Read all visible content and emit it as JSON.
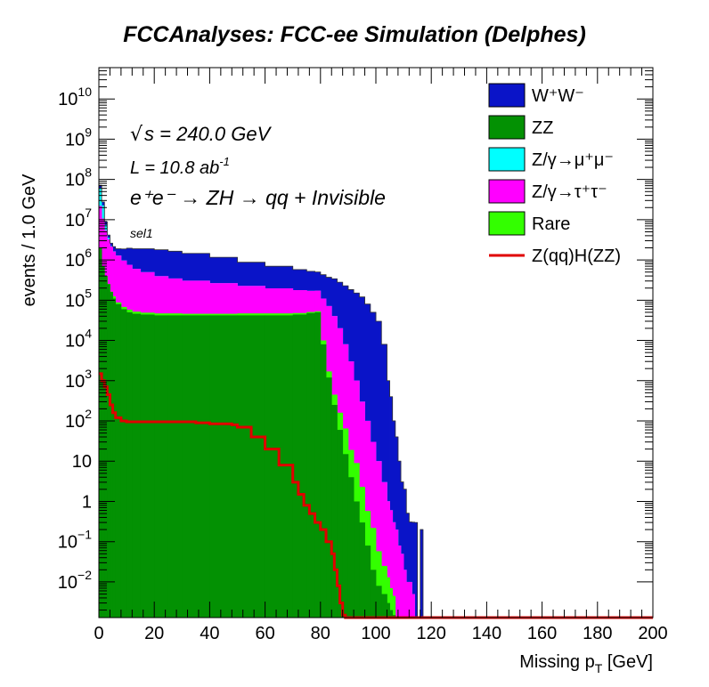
{
  "chart_data": {
    "type": "area",
    "title": "FCCAnalyses: FCC-ee Simulation (Delphes)",
    "xlabel": "Missing p_T [GeV]",
    "xlabel_main": "Missing p",
    "xlabel_sub": "T",
    "xlabel_unit": " [GeV]",
    "ylabel": "events / 1.0 GeV",
    "xlim": [
      0,
      200
    ],
    "ylog": true,
    "ylim": [
      0.0013,
      60000000000
    ],
    "x_ticks": [
      "0",
      "20",
      "40",
      "60",
      "80",
      "100",
      "120",
      "140",
      "160",
      "180",
      "200"
    ],
    "y_ticks": [
      {
        "base": "10",
        "exp": "10"
      },
      {
        "base": "10",
        "exp": "9"
      },
      {
        "base": "10",
        "exp": "8"
      },
      {
        "base": "10",
        "exp": "7"
      },
      {
        "base": "10",
        "exp": "6"
      },
      {
        "base": "10",
        "exp": "5"
      },
      {
        "base": "10",
        "exp": "4"
      },
      {
        "base": "10",
        "exp": "3"
      },
      {
        "base": "10",
        "exp": "2"
      },
      {
        "base": "10",
        "exp": ""
      },
      {
        "base": "1",
        "exp": ""
      },
      {
        "base": "10",
        "exp": "−1"
      },
      {
        "base": "10",
        "exp": "−2"
      }
    ],
    "annotations": {
      "sqrt_s": "s = 240.0 GeV",
      "lumi": "L = 10.8 ab",
      "lumi_exp": "-1",
      "process": "e⁺e⁻ → ZH → qq + Invisible",
      "selection": "sel1"
    },
    "legend": [
      {
        "label": "W⁺W⁻",
        "color": "#0a14c8",
        "kind": "fill"
      },
      {
        "label": "ZZ",
        "color": "#039103",
        "kind": "fill"
      },
      {
        "label": "Z/γ→μ⁺μ⁻",
        "color": "#00ffff",
        "kind": "fill"
      },
      {
        "label": "Z/γ→τ⁺τ⁻",
        "color": "#ff00ff",
        "kind": "fill"
      },
      {
        "label": "Rare",
        "color": "#33ff00",
        "kind": "fill"
      },
      {
        "label": "Z(qq)H(ZZ)",
        "color": "#e00000",
        "kind": "line"
      }
    ],
    "stack_x": [
      0,
      1,
      2,
      3,
      4,
      5,
      6,
      8,
      10,
      12,
      15,
      20,
      25,
      30,
      40,
      50,
      60,
      70,
      75,
      78,
      80,
      82,
      84,
      86,
      88,
      90,
      92,
      94,
      96,
      98,
      100,
      102,
      104,
      105,
      106,
      107,
      108,
      109,
      110,
      111,
      112,
      113,
      114,
      115,
      116,
      117,
      118,
      119,
      120
    ],
    "series": [
      {
        "name": "ZZ",
        "color": "#039103",
        "values": [
          2000000,
          700000,
          400000,
          250000,
          160000,
          110000,
          80000,
          60000,
          50000,
          46000,
          44000,
          42000,
          42000,
          42000,
          42000,
          42000,
          42000,
          44000,
          48000,
          50000,
          8000,
          1200,
          250,
          60,
          15,
          4,
          1,
          0.3,
          0.08,
          0.02,
          0.008,
          0.005,
          0.003,
          0.002,
          0.0015,
          null,
          null,
          null,
          null,
          null,
          null,
          null,
          null,
          null,
          null,
          null,
          null,
          null,
          null
        ]
      },
      {
        "name": "Rare",
        "color": "#33ff00",
        "values": [
          5000,
          5000,
          5000,
          3000,
          3000,
          15000,
          8000,
          8000,
          8000,
          6000,
          5000,
          5000,
          5000,
          4000,
          4000,
          5000,
          5000,
          4000,
          3000,
          3000,
          2000,
          500,
          200,
          100,
          50,
          15,
          8,
          2,
          0.5,
          0.2,
          0.05,
          0.02,
          0.01,
          0.005,
          0.003,
          null,
          null,
          null,
          null,
          null,
          null,
          null,
          null,
          null,
          null,
          null,
          null,
          null,
          null
        ]
      },
      {
        "name": "Z/γ→τ⁺τ⁻",
        "color": "#ff00ff",
        "values": [
          20000000,
          10000000,
          5000000,
          3000000,
          2000000,
          1500000,
          1200000,
          900000,
          700000,
          550000,
          450000,
          350000,
          300000,
          260000,
          220000,
          180000,
          150000,
          130000,
          120000,
          120000,
          100000,
          70000,
          40000,
          20000,
          8000,
          3000,
          1000,
          300,
          100,
          30,
          10,
          3,
          1,
          0.6,
          0.3,
          0.2,
          0.08,
          0.05,
          0.02,
          0.01,
          0.01,
          0.005,
          null,
          null,
          null,
          null,
          null,
          null,
          null
        ]
      },
      {
        "name": "Z/γ→μ⁺μ⁻",
        "color": "#00ffff",
        "values": [
          40000000,
          12000000,
          2000000,
          300000,
          50000,
          20000,
          10000,
          5000,
          2000,
          1000,
          500,
          200,
          100,
          50,
          20,
          10,
          5,
          2,
          1,
          1,
          1,
          1,
          1,
          1,
          1,
          0.5,
          0.2,
          0.1,
          0.05,
          0.02,
          0.01,
          0.005,
          0.002,
          null,
          null,
          null,
          null,
          null,
          null,
          null,
          null,
          null,
          null,
          null,
          null,
          null,
          null,
          null,
          null
        ]
      },
      {
        "name": "W⁺W⁻",
        "color": "#0a14c8",
        "values": [
          10000000,
          5000000,
          1500000,
          600000,
          400000,
          500000,
          600000,
          900000,
          1200000,
          1300000,
          1400000,
          1400000,
          1300000,
          1150000,
          900000,
          650000,
          500000,
          400000,
          350000,
          330000,
          320000,
          300000,
          300000,
          260000,
          220000,
          180000,
          150000,
          120000,
          80000,
          50000,
          30000,
          8000,
          1000,
          400,
          100,
          40,
          10,
          3,
          2,
          0.5,
          0.3,
          0.3,
          0.3,
          null,
          0.2,
          null,
          null,
          null,
          null
        ]
      }
    ],
    "signal": {
      "name": "Z(qq)H(ZZ)",
      "color": "#e00000",
      "x": [
        0,
        1,
        2,
        3,
        4,
        5,
        6,
        8,
        10,
        15,
        20,
        25,
        30,
        35,
        40,
        45,
        48,
        50,
        55,
        60,
        65,
        70,
        72,
        74,
        76,
        78,
        80,
        82,
        84,
        85,
        86,
        87,
        88,
        89,
        90,
        200
      ],
      "values": [
        1500,
        1000,
        700,
        450,
        250,
        160,
        120,
        100,
        95,
        95,
        95,
        95,
        95,
        90,
        85,
        85,
        80,
        70,
        40,
        20,
        8,
        3,
        1.5,
        0.8,
        0.5,
        0.3,
        0.2,
        0.1,
        0.05,
        0.02,
        0.008,
        0.003,
        0.0015,
        0.0013,
        0.0013,
        0.0013
      ]
    }
  }
}
